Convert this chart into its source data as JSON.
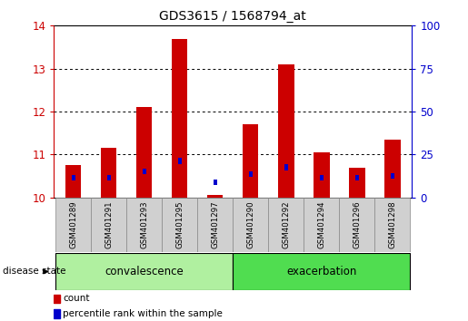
{
  "title": "GDS3615 / 1568794_at",
  "samples": [
    "GSM401289",
    "GSM401291",
    "GSM401293",
    "GSM401295",
    "GSM401297",
    "GSM401290",
    "GSM401292",
    "GSM401294",
    "GSM401296",
    "GSM401298"
  ],
  "red_values": [
    10.75,
    11.15,
    12.1,
    13.7,
    10.05,
    11.7,
    13.1,
    11.05,
    10.7,
    11.35
  ],
  "blue_values": [
    10.45,
    10.45,
    10.6,
    10.85,
    10.35,
    10.55,
    10.7,
    10.45,
    10.45,
    10.5
  ],
  "ylim_left": [
    10,
    14
  ],
  "ylim_right": [
    0,
    100
  ],
  "yticks_left": [
    10,
    11,
    12,
    13,
    14
  ],
  "yticks_right": [
    0,
    25,
    50,
    75,
    100
  ],
  "groups": [
    {
      "label": "convalescence",
      "start": 0,
      "end": 5
    },
    {
      "label": "exacerbation",
      "start": 5,
      "end": 10
    }
  ],
  "group_color_light": "#b0f0a0",
  "group_color_dark": "#50dd50",
  "bar_width": 0.45,
  "red_color": "#cc0000",
  "blue_color": "#0000cc",
  "axis_left_color": "#cc0000",
  "axis_right_color": "#0000cc",
  "background_color": "#ffffff",
  "tick_bg_color": "#d0d0d0",
  "legend_items": [
    "count",
    "percentile rank within the sample"
  ],
  "disease_state_label": "disease state"
}
